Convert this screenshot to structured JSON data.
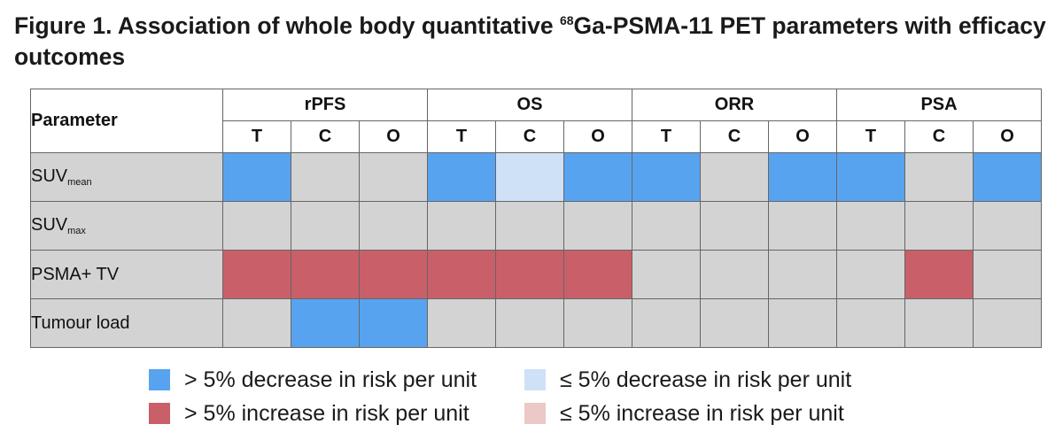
{
  "title": {
    "prefix": "Figure 1. Association of whole body quantitative ",
    "superscript": "68",
    "suffix": "Ga-PSMA-11 PET parameters with efficacy outcomes"
  },
  "colors": {
    "dark_blue": "#58a3f0",
    "light_blue": "#cfe1f7",
    "dark_red": "#c95f69",
    "light_red": "#ecc9c6",
    "neutral": "#d3d3d3"
  },
  "chart_data": {
    "type": "heatmap",
    "title": "Figure 1. Association of whole body quantitative 68Ga-PSMA-11 PET parameters with efficacy outcomes",
    "row_header": "Parameter",
    "groups": [
      "rPFS",
      "OS",
      "ORR",
      "PSA"
    ],
    "subcolumns": [
      "T",
      "C",
      "O"
    ],
    "rows": [
      {
        "label": "SUV",
        "subscript": "mean",
        "values": [
          "dec_gt5",
          "none",
          "none",
          "dec_gt5",
          "dec_le5",
          "dec_gt5",
          "dec_gt5",
          "none",
          "dec_gt5",
          "dec_gt5",
          "none",
          "dec_gt5"
        ]
      },
      {
        "label": "SUV",
        "subscript": "max",
        "values": [
          "none",
          "none",
          "none",
          "none",
          "none",
          "none",
          "none",
          "none",
          "none",
          "none",
          "none",
          "none"
        ]
      },
      {
        "label": "PSMA+ TV",
        "subscript": "",
        "values": [
          "inc_gt5",
          "inc_gt5",
          "inc_gt5",
          "inc_gt5",
          "inc_gt5",
          "inc_gt5",
          "none",
          "none",
          "none",
          "none",
          "inc_gt5",
          "none"
        ]
      },
      {
        "label": "Tumour load",
        "subscript": "",
        "values": [
          "none",
          "dec_gt5",
          "dec_gt5",
          "none",
          "none",
          "none",
          "none",
          "none",
          "none",
          "none",
          "none",
          "none"
        ]
      }
    ],
    "legend": [
      {
        "key": "dec_gt5",
        "label": "> 5% decrease in risk per unit",
        "color": "#58a3f0"
      },
      {
        "key": "dec_le5",
        "label": "≤ 5% decrease in risk per unit",
        "color": "#cfe1f7"
      },
      {
        "key": "inc_gt5",
        "label": "> 5% increase in risk per unit",
        "color": "#c95f69"
      },
      {
        "key": "inc_le5",
        "label": "≤ 5% increase in risk per unit",
        "color": "#ecc9c6"
      }
    ],
    "none_color": "#d3d3d3"
  }
}
